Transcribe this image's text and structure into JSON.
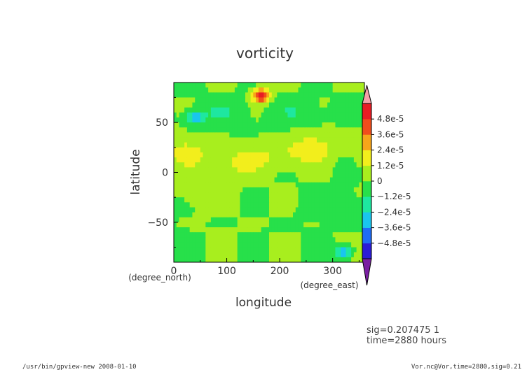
{
  "chart_data": {
    "type": "heatmap",
    "title": "vorticity",
    "xlabel": "longitude",
    "ylabel": "latitude",
    "x_unit": "(degree_east)",
    "y_unit": "(degree_north)",
    "xlim": [
      0,
      360
    ],
    "ylim": [
      -90,
      90
    ],
    "x_ticks": [
      "0",
      "100",
      "200",
      "300"
    ],
    "y_ticks": [
      "50",
      "0",
      "−50"
    ],
    "colorbar": {
      "labels": [
        "4.8e-5",
        "3.6e-5",
        "2.4e-5",
        "1.2e-5",
        "0",
        "−1.2e-5",
        "−2.4e-5",
        "−3.6e-5",
        "−4.8e-5"
      ],
      "min": -6e-05,
      "max": 6e-05,
      "colors": [
        "#7a1fa2",
        "#2b1bd6",
        "#1f6cf5",
        "#19c6ee",
        "#1ee7a0",
        "#27e04a",
        "#a8ee1e",
        "#f2ee1c",
        "#f7a51a",
        "#f14d1c",
        "#e81c24",
        "#f6a0a8"
      ]
    },
    "features": [
      {
        "lon": 165,
        "lat": 77,
        "value": 4.8e-05
      },
      {
        "lon": 40,
        "lat": 55,
        "value": -2.8e-05
      },
      {
        "lon": 320,
        "lat": -80,
        "value": -3.2e-05
      },
      {
        "lon": 20,
        "lat": 20,
        "value": 1.2e-05
      },
      {
        "lon": 110,
        "lat": 10,
        "value": 1.3e-05
      },
      {
        "lon": 200,
        "lat": 15,
        "value": 1.1e-05
      },
      {
        "lon": 260,
        "lat": 25,
        "value": 1.4e-05
      },
      {
        "lon": 90,
        "lat": 60,
        "value": -1e-05
      },
      {
        "lon": 230,
        "lat": 60,
        "value": -9e-06
      },
      {
        "lon": 60,
        "lat": -20,
        "value": 8e-06
      },
      {
        "lon": 300,
        "lat": -30,
        "value": -8e-06
      }
    ]
  },
  "info": {
    "sig": "sig=0.207475 1",
    "time": "time=2880 hours"
  },
  "footer": {
    "left": "/usr/bin/gpview-new  2008-01-10",
    "right": "Vor.nc@Vor,time=2880,sig=0.21"
  }
}
